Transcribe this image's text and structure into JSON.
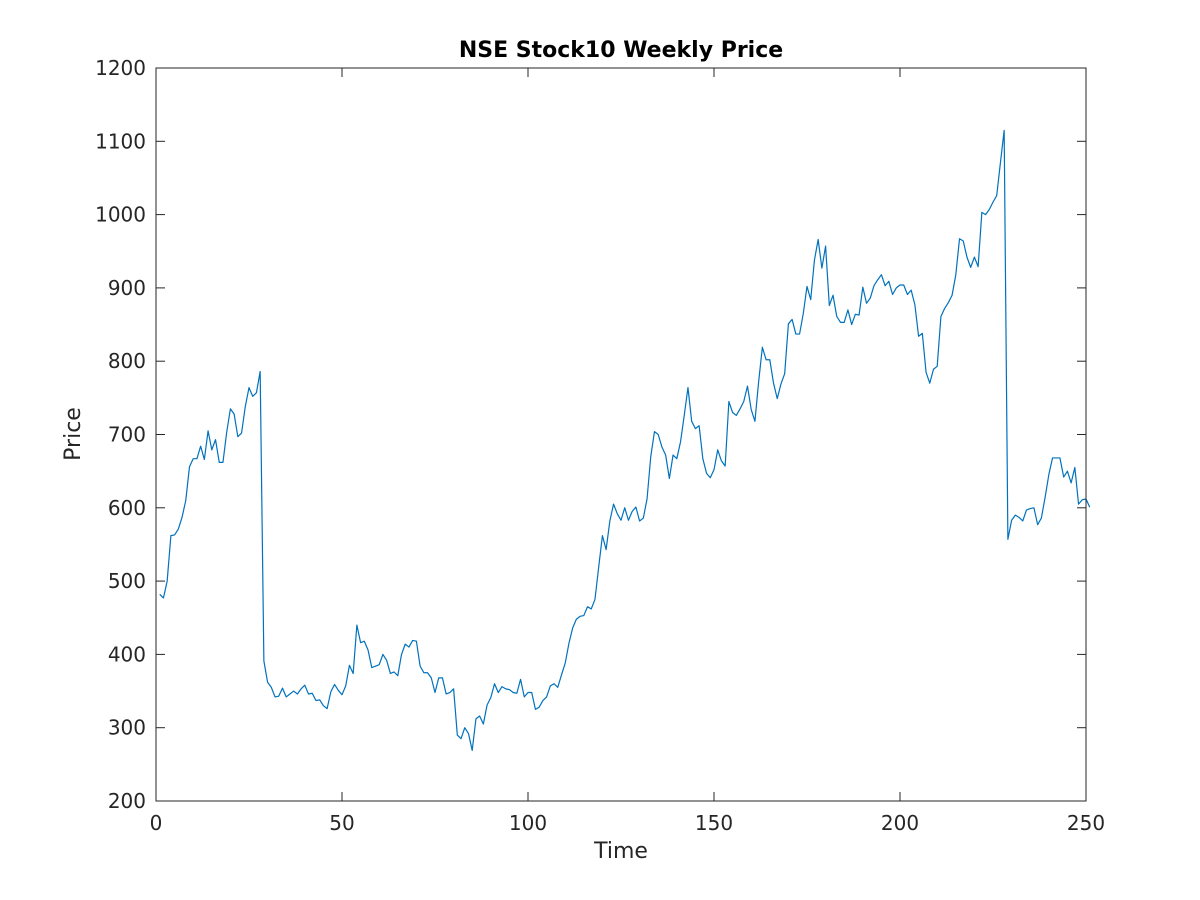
{
  "chart_data": {
    "type": "line",
    "title": "NSE Stock10 Weekly Price",
    "xlabel": "Time",
    "ylabel": "Price",
    "xlim": [
      0,
      250
    ],
    "ylim": [
      200,
      1200
    ],
    "xticks": [
      0,
      50,
      100,
      150,
      200,
      250
    ],
    "yticks": [
      200,
      300,
      400,
      500,
      600,
      700,
      800,
      900,
      1000,
      1100,
      1200
    ],
    "grid": false,
    "legend": false,
    "line_color": "#0072BD",
    "series": [
      {
        "x_start": 1,
        "x_step": 1,
        "values": [
          482,
          477,
          500,
          562,
          563,
          571,
          587,
          610,
          656,
          667,
          667,
          684,
          666,
          705,
          679,
          693,
          662,
          662,
          703,
          735,
          728,
          697,
          702,
          738,
          764,
          752,
          757,
          786,
          391,
          362,
          355,
          342,
          343,
          354,
          342,
          346,
          350,
          346,
          353,
          358,
          346,
          347,
          337,
          338,
          330,
          326,
          349,
          359,
          351,
          345,
          357,
          385,
          374,
          440,
          416,
          418,
          406,
          382,
          384,
          386,
          400,
          392,
          374,
          376,
          371,
          400,
          414,
          410,
          419,
          418,
          384,
          375,
          375,
          368,
          348,
          368,
          368,
          346,
          348,
          353,
          290,
          285,
          300,
          292,
          269,
          312,
          316,
          305,
          331,
          341,
          360,
          348,
          356,
          353,
          352,
          348,
          347,
          366,
          342,
          348,
          348,
          325,
          328,
          337,
          342,
          357,
          360,
          355,
          372,
          388,
          415,
          436,
          448,
          452,
          453,
          465,
          462,
          475,
          519,
          562,
          543,
          582,
          605,
          592,
          583,
          600,
          583,
          595,
          601,
          582,
          586,
          612,
          670,
          704,
          700,
          683,
          672,
          640,
          672,
          667,
          690,
          726,
          764,
          718,
          708,
          712,
          667,
          647,
          641,
          652,
          679,
          664,
          657,
          745,
          730,
          726,
          735,
          745,
          766,
          734,
          718,
          772,
          819,
          802,
          802,
          770,
          749,
          769,
          783,
          851,
          857,
          837,
          837,
          865,
          902,
          884,
          938,
          966,
          927,
          957,
          876,
          890,
          861,
          853,
          853,
          870,
          850,
          864,
          863,
          901,
          879,
          886,
          903,
          911,
          918,
          903,
          909,
          891,
          900,
          904,
          904,
          891,
          897,
          877,
          834,
          838,
          785,
          770,
          789,
          793,
          861,
          872,
          880,
          890,
          918,
          967,
          964,
          942,
          928,
          942,
          929,
          1003,
          1000,
          1007,
          1017,
          1026,
          1071,
          1115,
          557,
          583,
          590,
          587,
          582,
          597,
          599,
          600,
          577,
          586,
          614,
          645,
          668,
          668,
          668,
          642,
          650,
          634,
          655,
          605,
          611,
          612,
          601
        ]
      }
    ]
  }
}
